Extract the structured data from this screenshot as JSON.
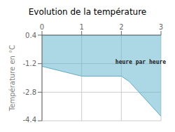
{
  "chart_data": {
    "type": "area",
    "title": "Evolution de la température",
    "y_label": "Température en °C",
    "annotations": [
      {
        "text": "heure par heure",
        "x": 1.85,
        "y": -1.1
      }
    ],
    "x": [
      0,
      1,
      2,
      2.2,
      3
    ],
    "values": [
      -1.35,
      -1.9,
      -1.9,
      -2.2,
      -4.15
    ],
    "fill_top": 0.4,
    "color": "#5aafcc",
    "xlim": [
      0,
      3.0
    ],
    "ylim": [
      -4.4,
      0.4
    ],
    "xticks": [
      0,
      1,
      2,
      3
    ],
    "yticks": [
      0.4,
      -1.2,
      -2.8,
      -4.4
    ],
    "grid": true
  }
}
